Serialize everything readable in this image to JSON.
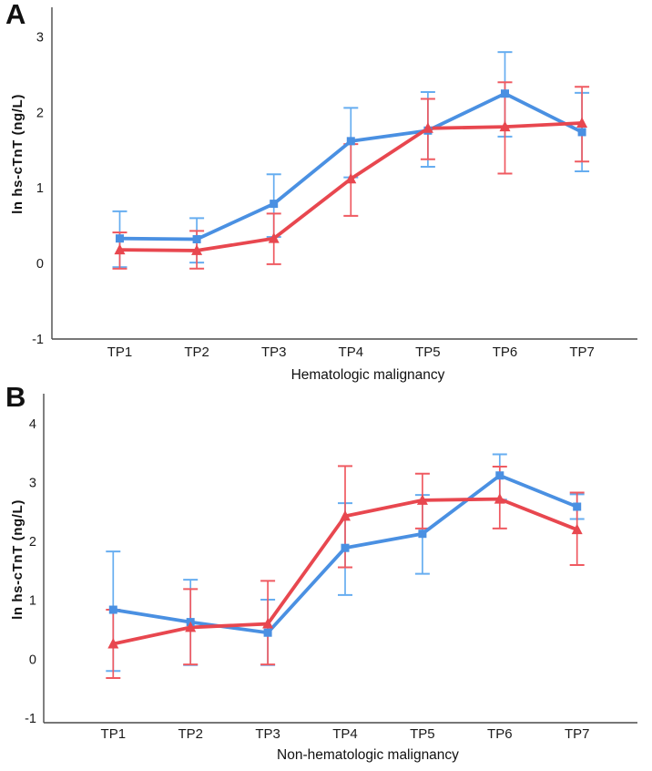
{
  "figure": {
    "background": "#ffffff",
    "axis_color": "#4a4a4a",
    "tick_text_color": "#1a1a1a"
  },
  "panels": [
    {
      "label": "A",
      "title": "Hematologic malignancy",
      "ylabel": "ln hs-cTnT (ng/L)"
    },
    {
      "label": "B",
      "title": "Non-hematologic malignancy",
      "ylabel": "ln hs-cTnT (ng/L)"
    }
  ],
  "chart_data": [
    {
      "type": "line",
      "panel": "A",
      "title": "Hematologic malignancy",
      "ylabel": "ln hs-cTnT (ng/L)",
      "categories": [
        "TP1",
        "TP2",
        "TP3",
        "TP4",
        "TP5",
        "TP6",
        "TP7"
      ],
      "yticks": [
        3,
        2,
        1,
        0,
        -1
      ],
      "ylim": [
        -1,
        3.4
      ],
      "grid": false,
      "legend": "none",
      "series": [
        {
          "name": "blue-square-series",
          "marker": "square",
          "color": "#4a90e2",
          "error_color": "#66adf0",
          "values": [
            0.33,
            0.32,
            0.79,
            1.62,
            1.76,
            2.25,
            1.74
          ],
          "ci_lower": [
            -0.05,
            0.01,
            0.35,
            1.14,
            1.28,
            1.68,
            1.22
          ],
          "ci_upper": [
            0.69,
            0.6,
            1.18,
            2.06,
            2.27,
            2.8,
            2.26
          ]
        },
        {
          "name": "red-triangle-series",
          "marker": "triangle",
          "color": "#e8474f",
          "error_color": "#ef5a61",
          "values": [
            0.18,
            0.17,
            0.33,
            1.12,
            1.79,
            1.81,
            1.86
          ],
          "ci_lower": [
            -0.07,
            -0.07,
            -0.01,
            0.63,
            1.38,
            1.19,
            1.35
          ],
          "ci_upper": [
            0.41,
            0.43,
            0.66,
            1.58,
            2.18,
            2.4,
            2.34
          ]
        }
      ]
    },
    {
      "type": "line",
      "panel": "B",
      "title": "Non-hematologic malignancy",
      "ylabel": "ln hs-cTnT (ng/L)",
      "categories": [
        "TP1",
        "TP2",
        "TP3",
        "TP4",
        "TP5",
        "TP6",
        "TP7"
      ],
      "yticks": [
        4,
        3,
        2,
        1,
        0,
        -1
      ],
      "ylim": [
        -1,
        4.5
      ],
      "grid": false,
      "legend": "none",
      "series": [
        {
          "name": "blue-square-series",
          "marker": "square",
          "color": "#4a90e2",
          "error_color": "#66adf0",
          "values": [
            0.84,
            0.63,
            0.45,
            1.89,
            2.13,
            3.12,
            2.59
          ],
          "ci_lower": [
            -0.2,
            -0.1,
            -0.1,
            1.09,
            1.45,
            2.71,
            2.38
          ],
          "ci_upper": [
            1.83,
            1.35,
            1.01,
            2.65,
            2.79,
            3.48,
            2.8
          ]
        },
        {
          "name": "red-triangle-series",
          "marker": "triangle",
          "color": "#e8474f",
          "error_color": "#ef5a61",
          "values": [
            0.26,
            0.54,
            0.6,
            2.43,
            2.7,
            2.72,
            2.2
          ],
          "ci_lower": [
            -0.32,
            -0.09,
            -0.09,
            1.56,
            2.22,
            2.22,
            1.6
          ],
          "ci_upper": [
            0.84,
            1.19,
            1.33,
            3.28,
            3.15,
            3.27,
            2.83
          ]
        }
      ]
    }
  ]
}
